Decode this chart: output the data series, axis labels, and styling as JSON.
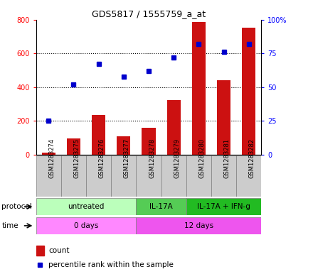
{
  "title": "GDS5817 / 1555759_a_at",
  "samples": [
    "GSM1283274",
    "GSM1283275",
    "GSM1283276",
    "GSM1283277",
    "GSM1283278",
    "GSM1283279",
    "GSM1283280",
    "GSM1283281",
    "GSM1283282"
  ],
  "counts": [
    15,
    95,
    235,
    110,
    160,
    325,
    785,
    440,
    750
  ],
  "percentiles": [
    25,
    52,
    67,
    58,
    62,
    72,
    82,
    76,
    82
  ],
  "bar_color": "#cc1111",
  "dot_color": "#0000cc",
  "ylim_left": [
    0,
    800
  ],
  "ylim_right": [
    0,
    100
  ],
  "yticks_left": [
    0,
    200,
    400,
    600,
    800
  ],
  "yticks_right": [
    0,
    25,
    50,
    75,
    100
  ],
  "yticklabels_right": [
    "0",
    "25",
    "50",
    "75",
    "100%"
  ],
  "protocol_groups": [
    {
      "label": "untreated",
      "start": 0,
      "end": 4,
      "color": "#bbffbb"
    },
    {
      "label": "IL-17A",
      "start": 4,
      "end": 6,
      "color": "#55cc55"
    },
    {
      "label": "IL-17A + IFN-g",
      "start": 6,
      "end": 9,
      "color": "#22bb22"
    }
  ],
  "time_groups": [
    {
      "label": "0 days",
      "start": 0,
      "end": 4,
      "color": "#ff88ff"
    },
    {
      "label": "12 days",
      "start": 4,
      "end": 9,
      "color": "#ee55ee"
    }
  ],
  "sample_bg_color": "#cccccc",
  "legend_count_label": "count",
  "legend_pct_label": "percentile rank within the sample",
  "protocol_label": "protocol",
  "time_label": "time",
  "title_fontsize": 9,
  "tick_fontsize": 7,
  "label_fontsize": 7.5,
  "row_fontsize": 7.5
}
